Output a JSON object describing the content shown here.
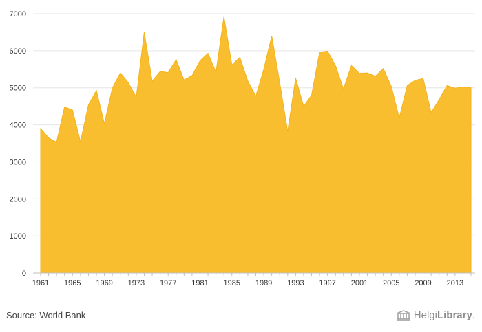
{
  "chart_data": {
    "type": "area",
    "title": "",
    "xlabel": "",
    "ylabel": "",
    "x": [
      1961,
      1962,
      1963,
      1964,
      1965,
      1966,
      1967,
      1968,
      1969,
      1970,
      1971,
      1972,
      1973,
      1974,
      1975,
      1976,
      1977,
      1978,
      1979,
      1980,
      1981,
      1982,
      1983,
      1984,
      1985,
      1986,
      1987,
      1988,
      1989,
      1990,
      1991,
      1992,
      1993,
      1994,
      1995,
      1996,
      1997,
      1998,
      1999,
      2000,
      2001,
      2002,
      2003,
      2004,
      2005,
      2006,
      2007,
      2008,
      2009,
      2010,
      2011,
      2012,
      2013,
      2014,
      2015
    ],
    "values": [
      3900,
      3650,
      3530,
      4480,
      4400,
      3540,
      4540,
      4920,
      4030,
      4990,
      5400,
      5140,
      4740,
      6500,
      5180,
      5440,
      5410,
      5760,
      5210,
      5330,
      5730,
      5930,
      5420,
      6920,
      5620,
      5820,
      5180,
      4770,
      5500,
      6400,
      5140,
      3820,
      5260,
      4500,
      4800,
      5960,
      5990,
      5600,
      4970,
      5600,
      5390,
      5400,
      5310,
      5520,
      5040,
      4180,
      5060,
      5200,
      5250,
      4330,
      4680,
      5060,
      4990,
      5020,
      5000
    ],
    "x_ticks": [
      "1961",
      "1965",
      "1969",
      "1973",
      "1977",
      "1981",
      "1985",
      "1989",
      "1993",
      "1997",
      "2001",
      "2005",
      "2009",
      "2013"
    ],
    "y_ticks": [
      "0",
      "1000",
      "2000",
      "3000",
      "4000",
      "5000",
      "6000",
      "7000"
    ],
    "ylim": [
      0,
      7000
    ],
    "grid": true,
    "legend": "none",
    "color": "#f9be2f"
  },
  "footer": {
    "source": "Source: World Bank",
    "brand_light": "Helgi",
    "brand_bold": "Library",
    "brand_suffix": "."
  }
}
